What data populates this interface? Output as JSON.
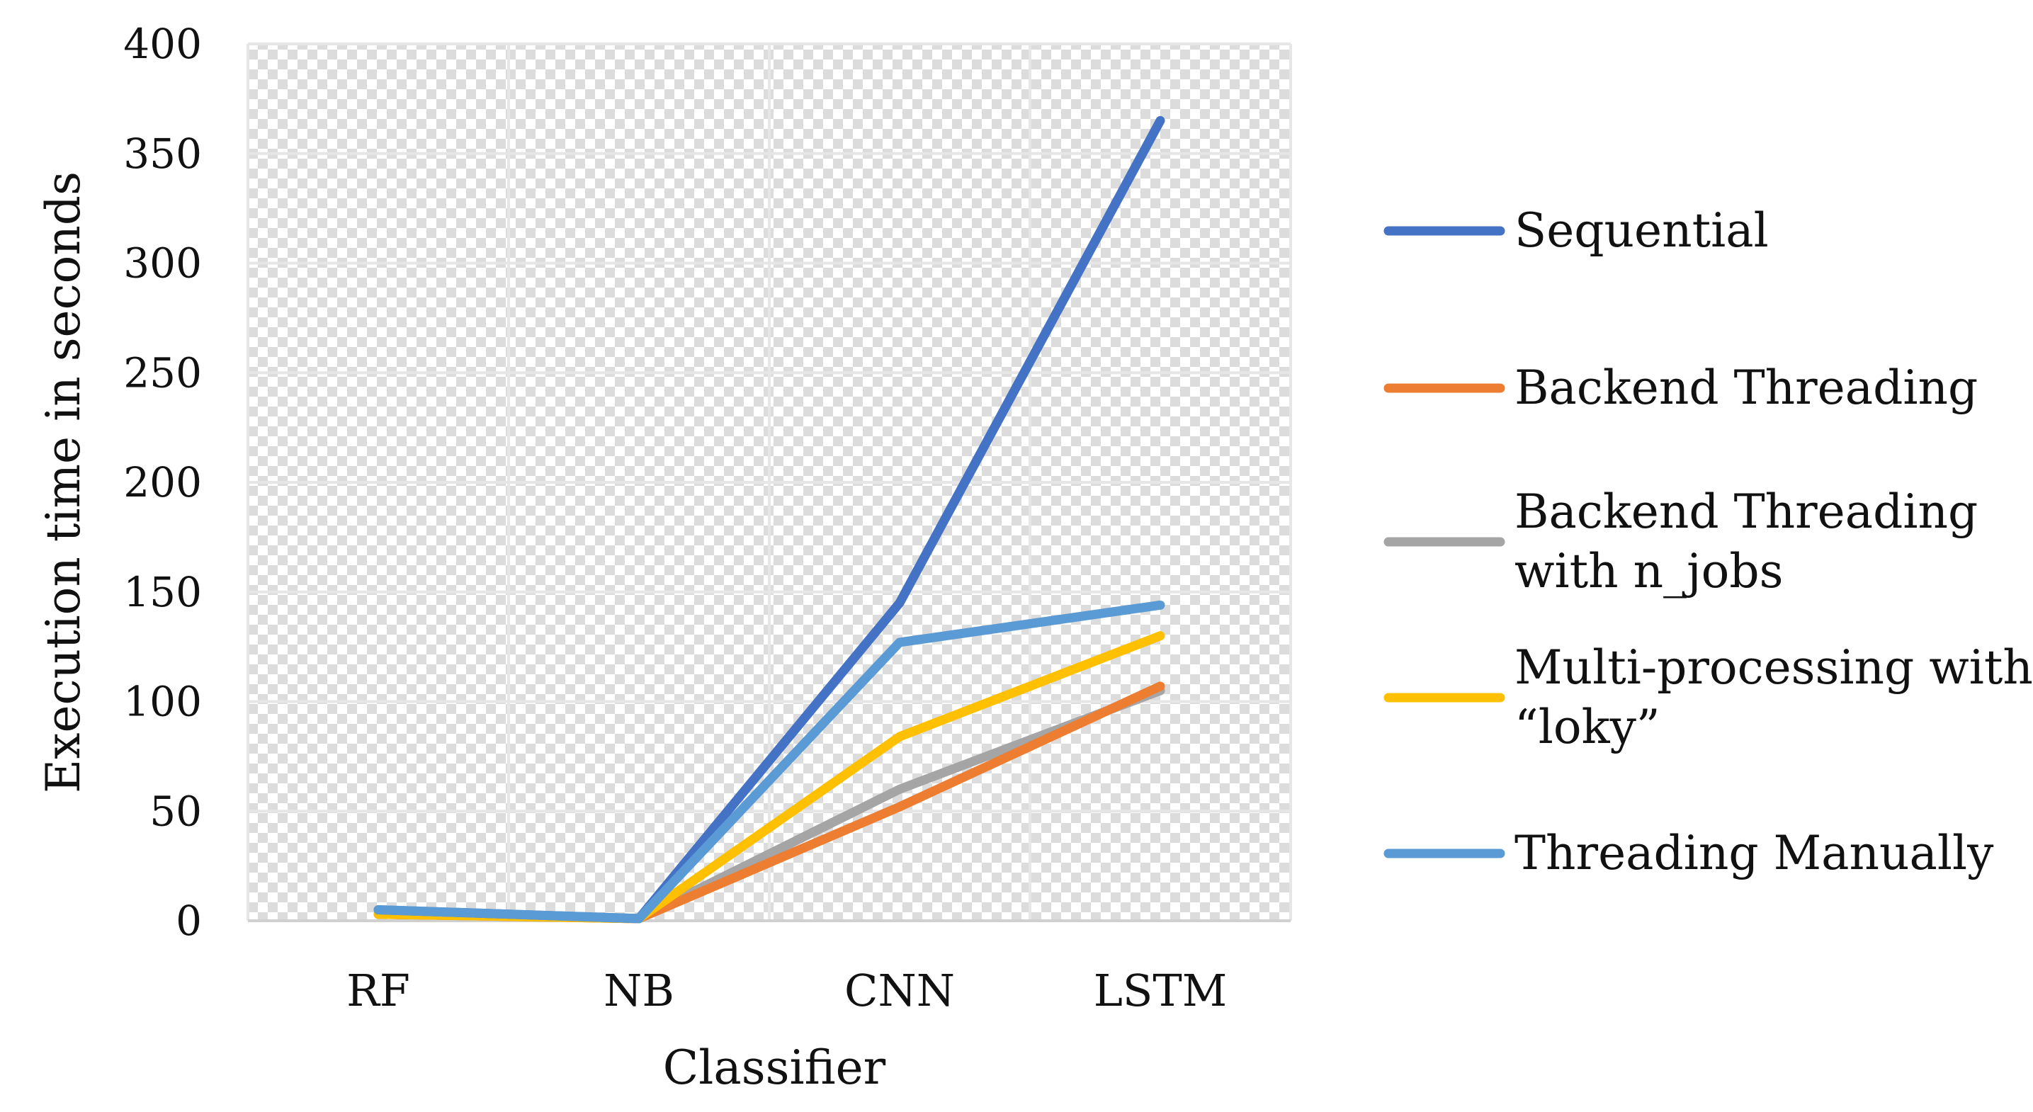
{
  "chart_data": {
    "type": "line",
    "title": "",
    "xlabel": "Classifier",
    "ylabel": "Execution time in seconds",
    "categories": [
      "RF",
      "NB",
      "CNN",
      "LSTM"
    ],
    "ylim": [
      0,
      400
    ],
    "yticks": [
      0,
      50,
      100,
      150,
      200,
      250,
      300,
      350,
      400
    ],
    "grid": true,
    "legend_position": "right",
    "series": [
      {
        "name": "Sequential",
        "color": "#4472C4",
        "values": [
          5,
          1,
          145,
          365
        ]
      },
      {
        "name": "Backend Threading",
        "color": "#ED7D31",
        "values": [
          3,
          1,
          52,
          107
        ]
      },
      {
        "name": "Backend Threading with n_jobs",
        "color": "#A5A5A5",
        "values": [
          3,
          1,
          60,
          105
        ]
      },
      {
        "name": "Multi-processing with “loky”",
        "color": "#FFC000",
        "values": [
          3,
          1,
          84,
          130
        ]
      },
      {
        "name": "Threading Manually",
        "color": "#5B9BD5",
        "values": [
          5,
          1,
          127,
          144
        ]
      }
    ],
    "legend_lines": [
      [
        "Sequential"
      ],
      [
        "Backend Threading"
      ],
      [
        "Backend Threading",
        "with n_jobs"
      ],
      [
        "Multi-processing with",
        "“loky”"
      ],
      [
        "Threading Manually"
      ]
    ]
  }
}
